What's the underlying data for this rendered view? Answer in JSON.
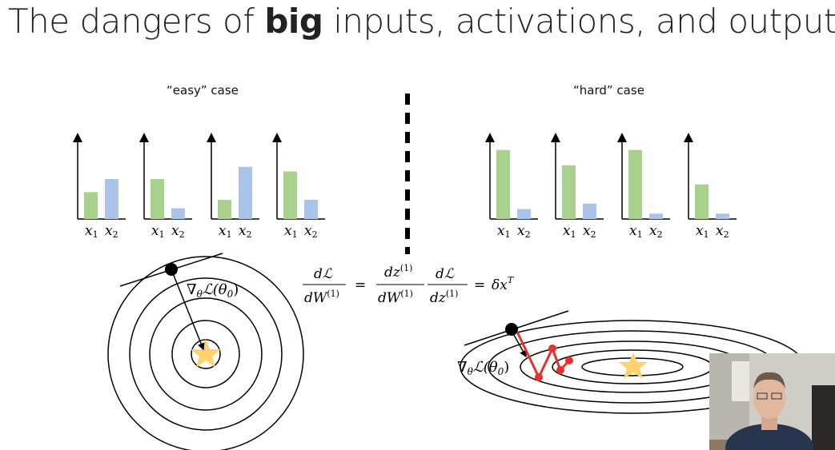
{
  "slide": {
    "title_before": "The dangers of ",
    "title_bold": "big",
    "title_after": " inputs, activations, and outputs"
  },
  "easy_case": {
    "label": "“easy” case",
    "charts": [
      {
        "x1": 0.35,
        "x2": 0.52
      },
      {
        "x1": 0.52,
        "x2": 0.14
      },
      {
        "x1": 0.25,
        "x2": 0.68
      },
      {
        "x1": 0.62,
        "x2": 0.25
      }
    ]
  },
  "hard_case": {
    "label": "“hard” case",
    "charts": [
      {
        "x1": 0.9,
        "x2": 0.13
      },
      {
        "x1": 0.7,
        "x2": 0.2
      },
      {
        "x1": 0.9,
        "x2": 0.07
      },
      {
        "x1": 0.45,
        "x2": 0.07
      }
    ]
  },
  "tick_labels": {
    "x1": "x",
    "x1_sub": "1",
    "x2": "x",
    "x2_sub": "2"
  },
  "gradient_label": {
    "main": "∇",
    "sub": "θ",
    "rest": "ℒ(θ",
    "sub2": "0",
    "close": ")"
  },
  "equation": {
    "lhs_num": "dℒ",
    "lhs_den_a": "dW",
    "lhs_den_sup": "(1)",
    "eq": "=",
    "r1_num_a": "dz",
    "r1_num_sup": "(1)",
    "r1_den_a": "dW",
    "r1_den_sup": "(1)",
    "r2_num": "dℒ",
    "r2_den_a": "dz",
    "r2_den_sup": "(1)",
    "eq2": "=",
    "rhs": "δx",
    "rhs_sup": "T"
  },
  "colors": {
    "x1_bar": "#a9d18e",
    "x2_bar": "#a9c4e8",
    "path": "#e8312d",
    "star": "#ffd36b"
  }
}
